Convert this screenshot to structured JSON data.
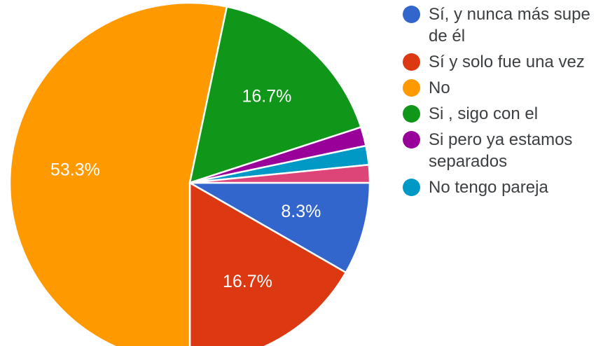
{
  "chart_data": {
    "type": "pie",
    "categories": [
      "Sí, y nunca más supe de él",
      "Sí y solo fue una vez",
      "No",
      "Si , sigo con el",
      "Si pero ya estamos separados",
      "No tengo pareja",
      ""
    ],
    "values": [
      8.3,
      16.7,
      53.3,
      16.7,
      1.7,
      1.7,
      1.6
    ],
    "data_labels": [
      "8.3%",
      "16.7%",
      "53.3%",
      "16.7%",
      "",
      "",
      ""
    ],
    "colors": [
      "#3366cc",
      "#dc3912",
      "#ff9900",
      "#109618",
      "#990099",
      "#0099c6",
      "#dd4477"
    ],
    "legend_position": "right",
    "start_angle_deg": 0,
    "direction": "clockwise"
  },
  "legend": {
    "items": [
      {
        "label": "Sí, y nunca más supe de él",
        "color": "#3366cc"
      },
      {
        "label": "Sí y solo fue una vez",
        "color": "#dc3912"
      },
      {
        "label": "No",
        "color": "#ff9900"
      },
      {
        "label": "Si , sigo con el",
        "color": "#109618"
      },
      {
        "label": "Si pero ya estamos separados",
        "color": "#990099"
      },
      {
        "label": "No tengo pareja",
        "color": "#0099c6"
      }
    ]
  }
}
